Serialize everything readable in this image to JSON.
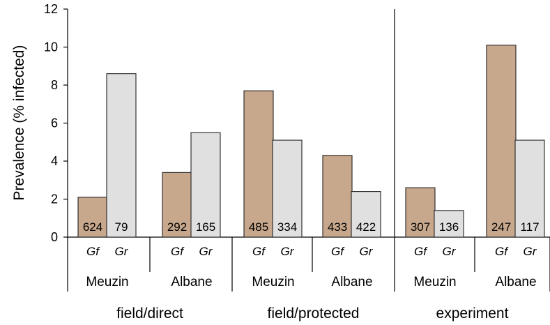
{
  "chart_data": {
    "type": "bar",
    "ylabel": "Prevalence (% infected)",
    "ylim": [
      0,
      12
    ],
    "yticks": [
      "0",
      "2",
      "4",
      "6",
      "8",
      "10",
      "12"
    ],
    "species": [
      "Gf",
      "Gr"
    ],
    "colors": {
      "Gf": "#c8a88c",
      "Gr": "#e0e0e0"
    },
    "groups": [
      {
        "condition": "field/direct",
        "cultivars": [
          {
            "name": "Meuzin",
            "bars": [
              {
                "species": "Gf",
                "value": 2.1,
                "n": "624"
              },
              {
                "species": "Gr",
                "value": 8.6,
                "n": "79"
              }
            ]
          },
          {
            "name": "Albane",
            "bars": [
              {
                "species": "Gf",
                "value": 3.4,
                "n": "292"
              },
              {
                "species": "Gr",
                "value": 5.5,
                "n": "165"
              }
            ]
          }
        ]
      },
      {
        "condition": "field/protected",
        "cultivars": [
          {
            "name": "Meuzin",
            "bars": [
              {
                "species": "Gf",
                "value": 7.7,
                "n": "485"
              },
              {
                "species": "Gr",
                "value": 5.1,
                "n": "334"
              }
            ]
          },
          {
            "name": "Albane",
            "bars": [
              {
                "species": "Gf",
                "value": 4.3,
                "n": "433"
              },
              {
                "species": "Gr",
                "value": 2.4,
                "n": "422"
              }
            ]
          }
        ]
      },
      {
        "condition": "experiment",
        "cultivars": [
          {
            "name": "Meuzin",
            "bars": [
              {
                "species": "Gf",
                "value": 2.6,
                "n": "307"
              },
              {
                "species": "Gr",
                "value": 1.4,
                "n": "136"
              }
            ]
          },
          {
            "name": "Albane",
            "bars": [
              {
                "species": "Gf",
                "value": 10.1,
                "n": "247"
              },
              {
                "species": "Gr",
                "value": 5.1,
                "n": "117"
              }
            ]
          }
        ]
      }
    ]
  }
}
